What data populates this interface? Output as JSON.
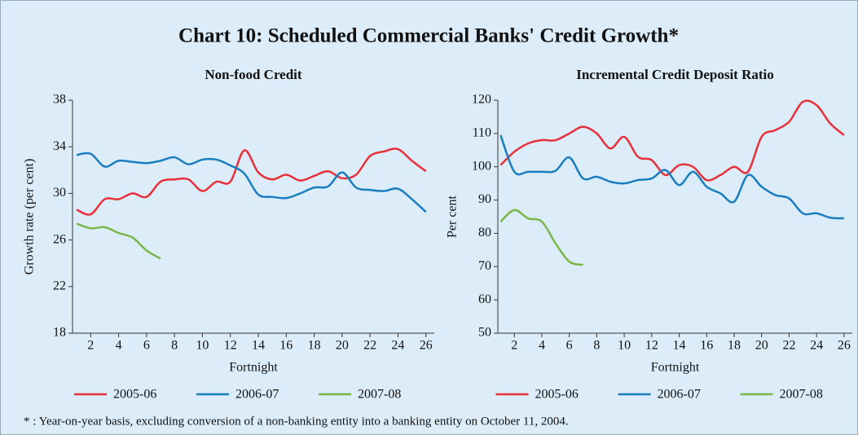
{
  "title": "Chart 10: Scheduled Commercial Banks' Credit Growth*",
  "footnote": "* : Year-on-year basis, excluding conversion of a non-banking entity into a banking entity on October 11, 2004.",
  "chart_data": [
    {
      "type": "line",
      "title": "Non-food Credit",
      "x_label": "Fortnight",
      "y_label": "Growth rate (per cent)",
      "x": [
        1,
        2,
        3,
        4,
        5,
        6,
        7,
        8,
        9,
        10,
        11,
        12,
        13,
        14,
        15,
        16,
        17,
        18,
        19,
        20,
        21,
        22,
        23,
        24,
        25,
        26
      ],
      "xlim": [
        0.7,
        26.6
      ],
      "xticks": [
        2,
        4,
        6,
        8,
        10,
        12,
        14,
        16,
        18,
        20,
        22,
        24,
        26
      ],
      "ylim": [
        18,
        38
      ],
      "yticks": [
        18,
        22,
        26,
        30,
        34,
        38
      ],
      "grid": false,
      "legend": "bottom",
      "series": [
        {
          "name": "2005-06",
          "color": "#e8303a",
          "values": [
            28.6,
            28.2,
            29.5,
            29.5,
            30.0,
            29.7,
            31.0,
            31.2,
            31.2,
            30.2,
            31.0,
            31.0,
            33.7,
            31.8,
            31.2,
            31.6,
            31.1,
            31.5,
            31.9,
            31.3,
            31.6,
            33.2,
            33.6,
            33.8,
            32.8,
            31.9
          ]
        },
        {
          "name": "2006-07",
          "color": "#1a7dc0",
          "values": [
            33.3,
            33.4,
            32.3,
            32.8,
            32.7,
            32.6,
            32.8,
            33.1,
            32.5,
            32.9,
            32.9,
            32.4,
            31.7,
            29.9,
            29.7,
            29.6,
            30.0,
            30.5,
            30.6,
            31.8,
            30.5,
            30.3,
            30.2,
            30.4,
            29.5,
            28.4
          ]
        },
        {
          "name": "2007-08",
          "color": "#7ab648",
          "values": [
            27.4,
            27.0,
            27.1,
            26.6,
            26.2,
            25.1,
            24.4,
            null,
            null,
            null,
            null,
            null,
            null,
            null,
            null,
            null,
            null,
            null,
            null,
            null,
            null,
            null,
            null,
            null,
            null,
            null
          ]
        }
      ]
    },
    {
      "type": "line",
      "title": "Incremental Credit Deposit Ratio",
      "x_label": "Fortnight",
      "y_label": "Per cent",
      "x": [
        1,
        2,
        3,
        4,
        5,
        6,
        7,
        8,
        9,
        10,
        11,
        12,
        13,
        14,
        15,
        16,
        17,
        18,
        19,
        20,
        21,
        22,
        23,
        24,
        25,
        26
      ],
      "xlim": [
        0.8,
        26.6
      ],
      "xticks": [
        2,
        4,
        6,
        8,
        10,
        12,
        14,
        16,
        18,
        20,
        22,
        24,
        26
      ],
      "ylim": [
        50,
        120
      ],
      "yticks": [
        50,
        60,
        70,
        80,
        90,
        100,
        110,
        120
      ],
      "grid": false,
      "legend": "bottom",
      "series": [
        {
          "name": "2005-06",
          "color": "#e8303a",
          "values": [
            100.5,
            104.5,
            107,
            108,
            108,
            110,
            112,
            110,
            105.5,
            109,
            103,
            102,
            97.5,
            100.5,
            100,
            96,
            97.5,
            100,
            98.5,
            109,
            111,
            113.5,
            119.5,
            118.5,
            113,
            109.5
          ]
        },
        {
          "name": "2006-07",
          "color": "#1a7dc0",
          "values": [
            109.5,
            98.5,
            98.5,
            98.5,
            98.8,
            102.8,
            96.5,
            97,
            95.5,
            95,
            96,
            96.5,
            99,
            94.5,
            98.5,
            94,
            92,
            89.5,
            97.5,
            94,
            91.5,
            90.5,
            86,
            86,
            84.7,
            84.5
          ]
        },
        {
          "name": "2007-08",
          "color": "#7ab648",
          "values": [
            83.5,
            87,
            84.5,
            83.5,
            77,
            71.5,
            70.5,
            null,
            null,
            null,
            null,
            null,
            null,
            null,
            null,
            null,
            null,
            null,
            null,
            null,
            null,
            null,
            null,
            null,
            null,
            null
          ]
        }
      ]
    }
  ]
}
